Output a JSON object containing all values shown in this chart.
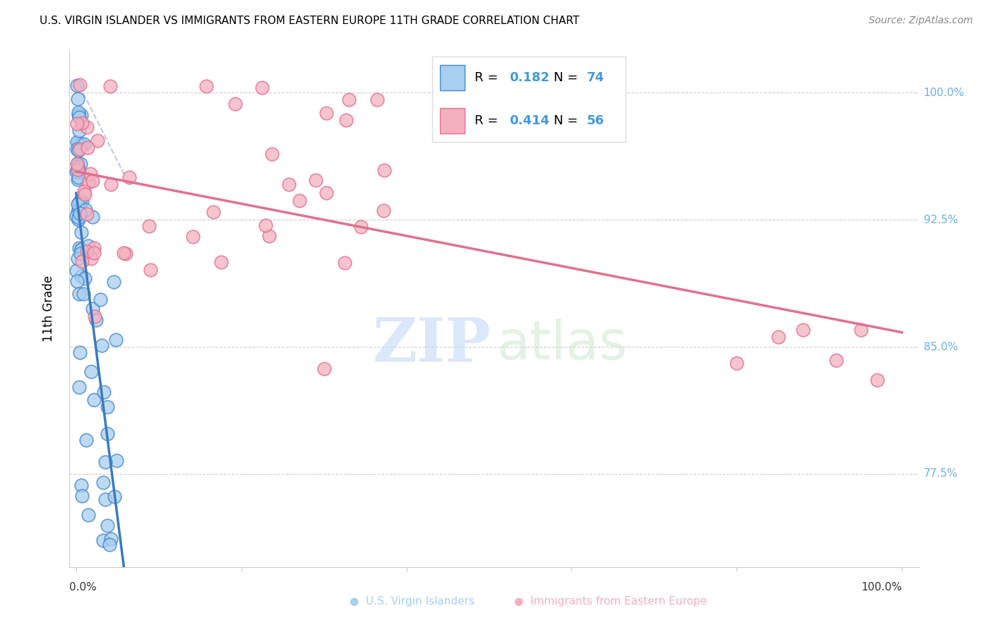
{
  "title": "U.S. VIRGIN ISLANDER VS IMMIGRANTS FROM EASTERN EUROPE 11TH GRADE CORRELATION CHART",
  "source": "Source: ZipAtlas.com",
  "ylabel": "11th Grade",
  "ylabel_ticks": [
    "77.5%",
    "85.0%",
    "92.5%",
    "100.0%"
  ],
  "ylabel_tick_vals": [
    0.775,
    0.85,
    0.925,
    1.0
  ],
  "xlim": [
    0.0,
    1.0
  ],
  "ylim": [
    0.72,
    1.025
  ],
  "R_blue": "0.182",
  "N_blue": "74",
  "R_pink": "0.414",
  "N_pink": "56",
  "color_blue_fill": "#a8cef0",
  "color_blue_edge": "#4488cc",
  "color_blue_line": "#3a7abf",
  "color_pink_fill": "#f4b0bf",
  "color_pink_edge": "#e07090",
  "color_pink_line": "#e07090",
  "color_right_labels": "#6aaee8",
  "color_legend_val": "#4499dd",
  "grid_color": "#cccccc",
  "watermark_ZIP_color": "#ccddf8",
  "watermark_atlas_color": "#cce8cc"
}
